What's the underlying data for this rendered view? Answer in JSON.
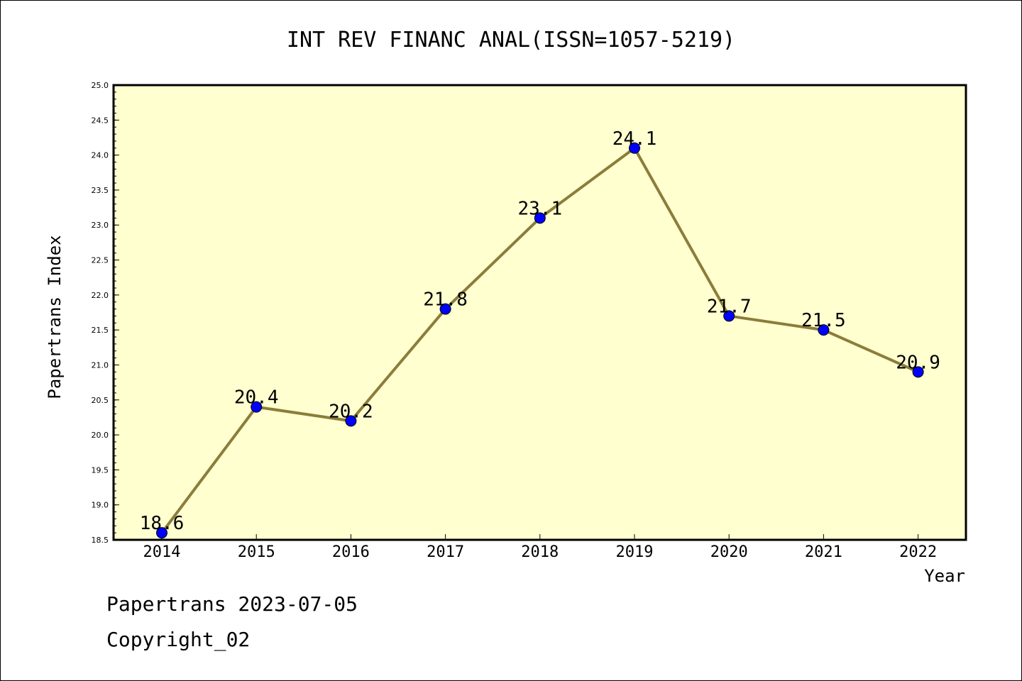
{
  "chart_data": {
    "type": "line",
    "title": "INT REV FINANC ANAL(ISSN=1057-5219)",
    "xlabel": "Year",
    "ylabel": "Papertrans Index",
    "categories": [
      "2014",
      "2015",
      "2016",
      "2017",
      "2018",
      "2019",
      "2020",
      "2021",
      "2022"
    ],
    "values": [
      18.6,
      20.4,
      20.2,
      21.8,
      23.1,
      24.1,
      21.7,
      21.5,
      20.9
    ],
    "data_labels": [
      "18.6",
      "20.4",
      "20.2",
      "21.8",
      "23.1",
      "24.1",
      "21.7",
      "21.5",
      "20.9"
    ],
    "ylim": [
      18.5,
      25.0
    ],
    "yticks": [
      "18.5",
      "19.0",
      "19.5",
      "20.0",
      "20.5",
      "21.0",
      "21.5",
      "22.0",
      "22.5",
      "23.0",
      "23.5",
      "24.0",
      "24.5",
      "25.0"
    ],
    "grid": false,
    "colors": {
      "plot_background": "#ffffd0",
      "line": "#8b7d3a",
      "marker": "#0000ff"
    }
  },
  "footer": {
    "line1": "Papertrans 2023-07-05",
    "line2": "Copyright_02"
  }
}
